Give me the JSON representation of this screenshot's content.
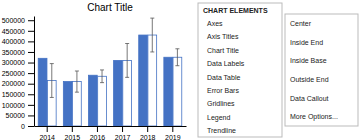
{
  "chart_data": {
    "type": "bar",
    "title": "Chart Title",
    "categories": [
      "2014",
      "2015",
      "2016",
      "2017",
      "2018",
      "2019"
    ],
    "series": [
      {
        "color": "#4472C4",
        "values": [
          320000,
          210000,
          240000,
          310000,
          430000,
          325000
        ]
      },
      {
        "color": "#FFFFFF",
        "values": [
          215000,
          210000,
          235000,
          310000,
          430000,
          325000
        ],
        "errors": [
          80000,
          50000,
          30000,
          80000,
          80000,
          40000
        ]
      }
    ],
    "ylim": [
      0,
      520000
    ],
    "yticks": [
      0,
      50000,
      100000,
      150000,
      200000,
      250000,
      300000,
      350000,
      400000,
      450000,
      500000
    ],
    "grid": false,
    "annotations": [
      "CHART ELEMENTS",
      "Axes",
      "Axis Titles",
      "Chart Title",
      "Data Labels",
      "Data Table",
      "Error Bars",
      "Gridlines",
      "Legend",
      "Trendline",
      "Center",
      "Inside End",
      "Inside Base",
      "Outside End",
      "Data Callout",
      "More Options..."
    ]
  }
}
